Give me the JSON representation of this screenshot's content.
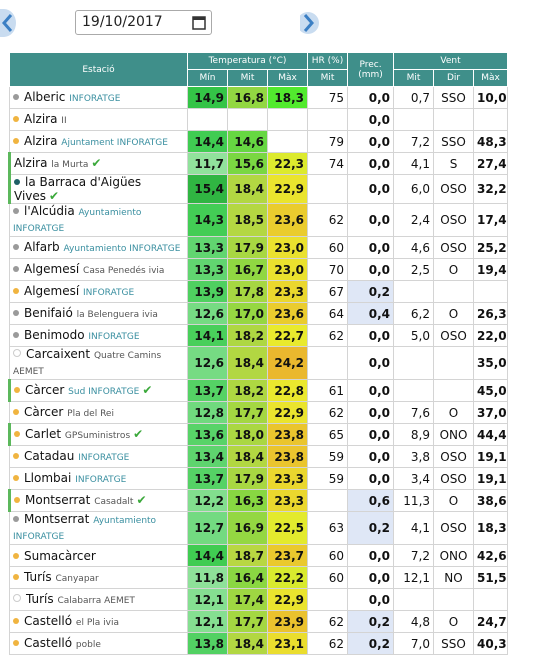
{
  "header": {
    "date": "19/10/2017"
  },
  "table": {
    "header": {
      "station": "Estació",
      "temperature": "Temperatura (°C)",
      "hr": "HR (%)",
      "prec": "Prec. (mm)",
      "wind": "Vent"
    },
    "subheader": {
      "t_min": "Mín",
      "t_mit": "Mit",
      "t_max": "Màx",
      "hr_mit": "Mit",
      "w_mit": "Mit",
      "w_dir": "Dir",
      "w_max": "Màx"
    },
    "rows": [
      {
        "name": "Alberic",
        "sub": "INFORATGE",
        "dot": "#9a9a9a",
        "verified": false,
        "min": "14,9",
        "mit": "16,8",
        "max": "18,3",
        "hr": "75",
        "prec": "0,0",
        "w_mit": "0,7",
        "w_dir": "SSO",
        "w_max": "10,0"
      },
      {
        "name": "Alzira",
        "sub": "II",
        "dot": "#f0b440",
        "verified": false,
        "min": null,
        "mit": null,
        "max": null,
        "hr": null,
        "prec": "0,0",
        "w_mit": null,
        "w_dir": null,
        "w_max": null
      },
      {
        "name": "Alzira",
        "sub": "Ajuntament INFORATGE",
        "dot": "#f0b440",
        "verified": false,
        "min": "14,4",
        "mit": "14,6",
        "max": null,
        "hr": "79",
        "prec": "0,0",
        "w_mit": "7,2",
        "w_dir": "SSO",
        "w_max": "48,3"
      },
      {
        "name": "Alzira",
        "sub": "la Murta",
        "dot": null,
        "verified": true,
        "min": "11,7",
        "mit": "15,6",
        "max": "22,3",
        "hr": "74",
        "prec": "0,0",
        "w_mit": "4,1",
        "w_dir": "S",
        "w_max": "27,4"
      },
      {
        "name": "la Barraca d'Aigües Vives",
        "sub": null,
        "dot": "#1f5f66",
        "verified": true,
        "min": "15,4",
        "mit": "18,4",
        "max": "22,9",
        "hr": null,
        "prec": "0,0",
        "w_mit": "6,0",
        "w_dir": "OSO",
        "w_max": "32,2"
      },
      {
        "name": "l'Alcúdia",
        "sub": "Ayuntamiento INFORATGE",
        "dot": "#9a9a9a",
        "verified": false,
        "min": "14,3",
        "mit": "18,5",
        "max": "23,6",
        "hr": "62",
        "prec": "0,0",
        "w_mit": "2,4",
        "w_dir": "OSO",
        "w_max": "17,4"
      },
      {
        "name": "Alfarb",
        "sub": "Ayuntamiento INFORATGE",
        "dot": "#9a9a9a",
        "verified": false,
        "min": "13,3",
        "mit": "17,9",
        "max": "23,0",
        "hr": "60",
        "prec": "0,0",
        "w_mit": "4,6",
        "w_dir": "OSO",
        "w_max": "25,2"
      },
      {
        "name": "Algemesí",
        "sub": "Casa Penedés ivia",
        "dot": "#9a9a9a",
        "verified": false,
        "min": "13,3",
        "mit": "16,7",
        "max": "23,0",
        "hr": "70",
        "prec": "0,0",
        "w_mit": "2,5",
        "w_dir": "O",
        "w_max": "19,4"
      },
      {
        "name": "Algemesí",
        "sub": "INFORATGE",
        "dot": "#f0b440",
        "verified": false,
        "min": "13,9",
        "mit": "17,8",
        "max": "23,3",
        "hr": "67",
        "prec": "0,2",
        "w_mit": null,
        "w_dir": null,
        "w_max": null
      },
      {
        "name": "Benifaió",
        "sub": "la Belenguera ivia",
        "dot": "#9a9a9a",
        "verified": false,
        "min": "12,6",
        "mit": "17,0",
        "max": "23,6",
        "hr": "64",
        "prec": "0,4",
        "w_mit": "6,2",
        "w_dir": "O",
        "w_max": "26,3"
      },
      {
        "name": "Benimodo",
        "sub": "INFORATGE",
        "dot": "#9a9a9a",
        "verified": false,
        "min": "14,1",
        "mit": "18,2",
        "max": "22,7",
        "hr": "62",
        "prec": "0,0",
        "w_mit": "5,0",
        "w_dir": "OSO",
        "w_max": "22,0"
      },
      {
        "name": "Carcaixent",
        "sub": "Quatre Camins AEMET",
        "dot": "#ffffff",
        "verified": false,
        "min": "12,6",
        "mit": "18,4",
        "max": "24,2",
        "hr": null,
        "prec": "0,0",
        "w_mit": null,
        "w_dir": null,
        "w_max": "35,0"
      },
      {
        "name": "Càrcer",
        "sub": "Sud INFORATGE",
        "dot": "#f0b440",
        "verified": true,
        "min": "13,7",
        "mit": "18,2",
        "max": "22,8",
        "hr": "61",
        "prec": "0,0",
        "w_mit": null,
        "w_dir": null,
        "w_max": "45,0"
      },
      {
        "name": "Càrcer",
        "sub": "Pla del Rei",
        "dot": "#f0b440",
        "verified": false,
        "min": "12,8",
        "mit": "17,7",
        "max": "22,9",
        "hr": "62",
        "prec": "0,0",
        "w_mit": "7,6",
        "w_dir": "O",
        "w_max": "37,0"
      },
      {
        "name": "Carlet",
        "sub": "GPSuministros",
        "dot": "#f0b440",
        "verified": true,
        "min": "13,6",
        "mit": "18,0",
        "max": "23,8",
        "hr": "65",
        "prec": "0,0",
        "w_mit": "8,9",
        "w_dir": "ONO",
        "w_max": "44,4"
      },
      {
        "name": "Catadau",
        "sub": "INFORATGE",
        "dot": "#f0b440",
        "verified": false,
        "min": "13,4",
        "mit": "18,4",
        "max": "23,8",
        "hr": "59",
        "prec": "0,0",
        "w_mit": "3,8",
        "w_dir": "OSO",
        "w_max": "19,1"
      },
      {
        "name": "Llombai",
        "sub": "INFORATGE",
        "dot": "#f0b440",
        "verified": false,
        "min": "13,7",
        "mit": "17,9",
        "max": "23,3",
        "hr": "59",
        "prec": "0,0",
        "w_mit": "3,4",
        "w_dir": "OSO",
        "w_max": "19,1"
      },
      {
        "name": "Montserrat",
        "sub": "Casadalt",
        "dot": "#f0b440",
        "verified": true,
        "min": "12,2",
        "mit": "16,3",
        "max": "23,3",
        "hr": null,
        "prec": "0,6",
        "w_mit": "11,3",
        "w_dir": "O",
        "w_max": "38,6"
      },
      {
        "name": "Montserrat",
        "sub": "Ayuntamiento INFORATGE",
        "dot": "#9a9a9a",
        "verified": false,
        "min": "12,7",
        "mit": "16,9",
        "max": "22,5",
        "hr": "63",
        "prec": "0,2",
        "w_mit": "4,1",
        "w_dir": "OSO",
        "w_max": "18,3"
      },
      {
        "name": "Sumacàrcer",
        "sub": null,
        "dot": "#f0b440",
        "verified": false,
        "min": "14,4",
        "mit": "18,7",
        "max": "23,7",
        "hr": "60",
        "prec": "0,0",
        "w_mit": "7,2",
        "w_dir": "ONO",
        "w_max": "42,6"
      },
      {
        "name": "Turís",
        "sub": "Canyapar",
        "dot": "#f0b440",
        "verified": false,
        "min": "11,8",
        "mit": "16,4",
        "max": "22,2",
        "hr": "60",
        "prec": "0,0",
        "w_mit": "12,1",
        "w_dir": "NO",
        "w_max": "51,5"
      },
      {
        "name": "Turís",
        "sub": "Calabarra AEMET",
        "dot": "#ffffff",
        "verified": false,
        "min": "12,1",
        "mit": "17,4",
        "max": "22,9",
        "hr": null,
        "prec": "0,0",
        "w_mit": null,
        "w_dir": null,
        "w_max": null
      },
      {
        "name": "Castelló",
        "sub": "el Pla ivia",
        "dot": "#f0b440",
        "verified": false,
        "min": "12,1",
        "mit": "17,7",
        "max": "23,9",
        "hr": "62",
        "prec": "0,2",
        "w_mit": "4,8",
        "w_dir": "O",
        "w_max": "24,7"
      },
      {
        "name": "Castelló",
        "sub": "poble",
        "dot": "#f0b440",
        "verified": false,
        "min": "13,8",
        "mit": "18,4",
        "max": "23,1",
        "hr": "62",
        "prec": "0,2",
        "w_mit": "7,0",
        "w_dir": "SSO",
        "w_max": "40,3"
      }
    ]
  }
}
